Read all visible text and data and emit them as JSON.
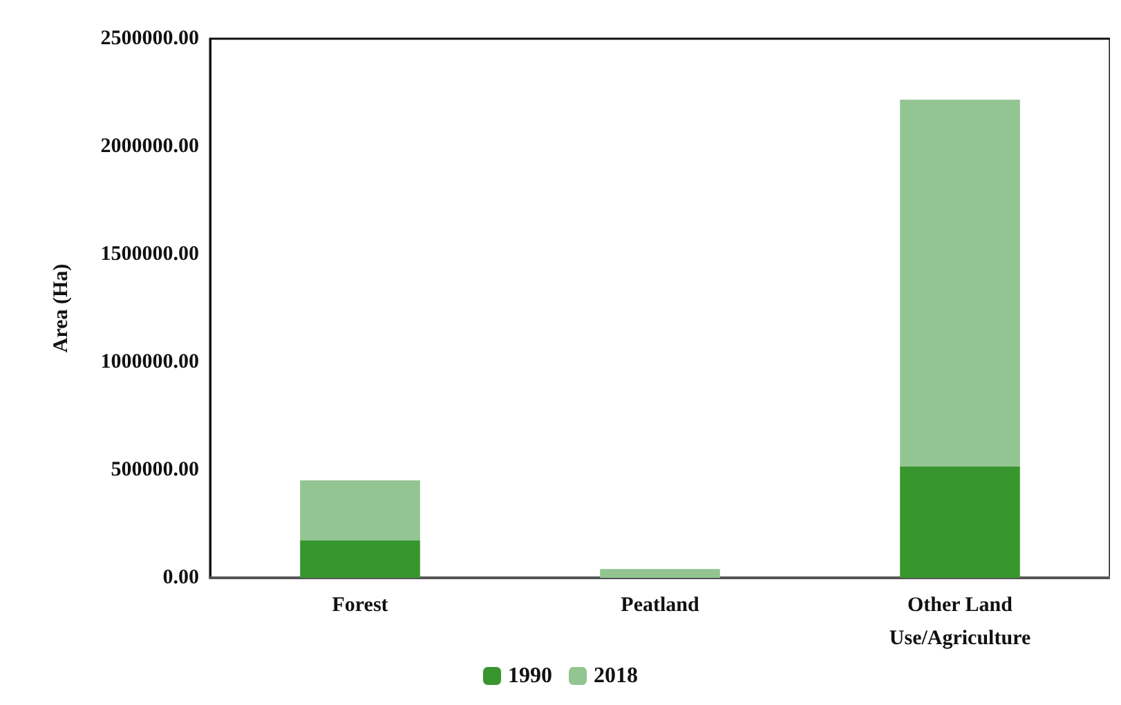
{
  "chart_data": {
    "type": "bar",
    "stacked": true,
    "ylabel": "Area (Ha)",
    "categories": [
      "Forest",
      "Peatland",
      "Other Land\nUse/Agriculture"
    ],
    "series": [
      {
        "name": "1990",
        "color": "#38962f",
        "values": [
          175000,
          0,
          518000
        ]
      },
      {
        "name": "2018",
        "color": "#92c591",
        "values": [
          277000,
          41000,
          1699000
        ]
      }
    ],
    "ylim": [
      0,
      2500000
    ],
    "yticks": [
      {
        "value": 0,
        "label": "0.00"
      },
      {
        "value": 500000,
        "label": "500000.00"
      },
      {
        "value": 1000000,
        "label": "1000000.00"
      },
      {
        "value": 1500000,
        "label": "1500000.00"
      },
      {
        "value": 2000000,
        "label": "2000000.00"
      },
      {
        "value": 2500000,
        "label": "2500000.00"
      }
    ],
    "grid": false,
    "legend": "bottom"
  }
}
